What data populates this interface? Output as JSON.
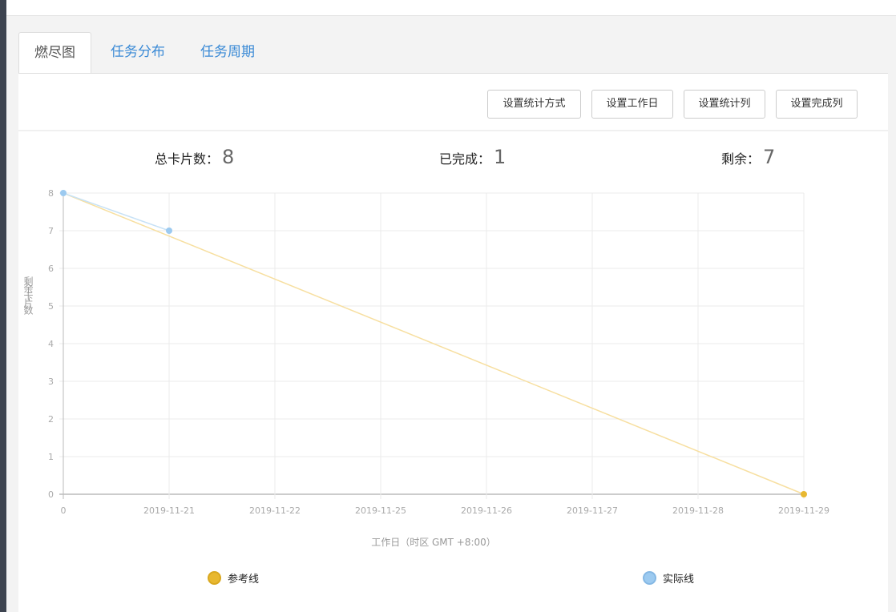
{
  "tabs": [
    {
      "label": "燃尽图",
      "active": true
    },
    {
      "label": "任务分布"
    },
    {
      "label": "任务周期"
    }
  ],
  "toolbar": {
    "buttons": [
      "设置统计方式",
      "设置工作日",
      "设置统计列",
      "设置完成列"
    ]
  },
  "stats": {
    "total_label": "总卡片数：",
    "total": "8",
    "done_label": "已完成：",
    "done": "1",
    "remain_label": "剩余：",
    "remain": "7"
  },
  "chart_data": {
    "type": "line",
    "categories": [
      "0",
      "2019-11-21",
      "2019-11-22",
      "2019-11-25",
      "2019-11-26",
      "2019-11-27",
      "2019-11-28",
      "2019-11-29"
    ],
    "ylabel": "剩余卡片数",
    "xlabel": "工作日（时区 GMT +8:00）",
    "ylim": [
      0,
      8
    ],
    "yticks": [
      0,
      1,
      2,
      3,
      4,
      5,
      6,
      7,
      8
    ],
    "grid": true,
    "legend_position": "bottom",
    "series": [
      {
        "name": "参考线",
        "color": "#e8b830",
        "line_color": "#f7dfa0",
        "values": [
          8,
          null,
          null,
          null,
          null,
          null,
          null,
          0
        ]
      },
      {
        "name": "实际线",
        "color": "#9ccaf0",
        "line_color": "#c8e2f6",
        "values": [
          8,
          7,
          null,
          null,
          null,
          null,
          null,
          null
        ]
      }
    ]
  }
}
